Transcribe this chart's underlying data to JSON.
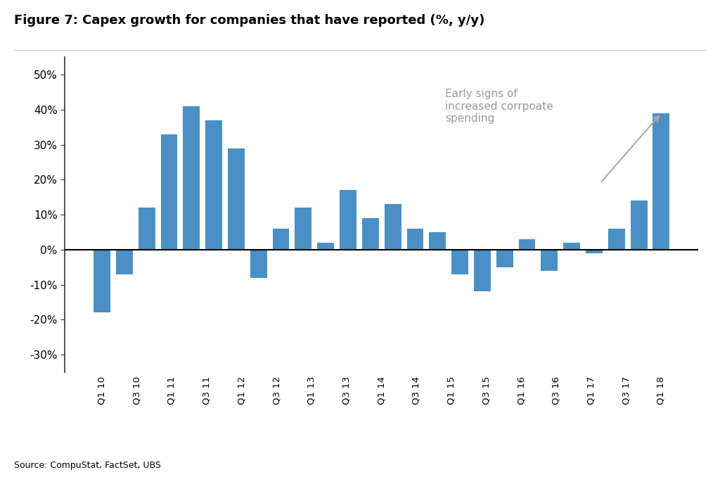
{
  "title": "Figure 7: Capex growth for companies that have reported (%, y/y)",
  "source": "Source: CompuStat, FactSet, UBS",
  "bar_color": "#4A90C4",
  "background_color": "#FFFFFF",
  "values": [
    -18,
    -7,
    12,
    33,
    41,
    37,
    29,
    -8,
    6,
    12,
    2,
    17,
    9,
    13,
    6,
    5,
    -7,
    -12,
    -5,
    3,
    -6,
    2,
    -1,
    6,
    14,
    39
  ],
  "x_labels": [
    "Q1 10",
    "Q3 10",
    "Q1 11",
    "Q3 11",
    "",
    "",
    "Q1 12",
    "Q3 12",
    "Q1 13",
    "Q3 13",
    "Q1 14",
    "Q3 14",
    "Q1 15",
    "Q3 15",
    "Q1 16",
    "Q3 16",
    "Q1 17",
    "Q3 17",
    "Q1 18"
  ],
  "tick_labels": [
    "Q1 10",
    "Q3 10",
    "Q1 11",
    "Q3 11",
    "Q1 12",
    "Q3 12",
    "Q1 13",
    "Q3 13",
    "Q1 14",
    "Q3 14",
    "Q1 15",
    "Q3 15",
    "Q1 16",
    "Q3 16",
    "Q1 17",
    "Q3 17",
    "Q1 18"
  ],
  "ylim": [
    -35,
    55
  ],
  "yticks": [
    -30,
    -20,
    -10,
    0,
    10,
    20,
    30,
    40,
    50
  ],
  "annotation_text": "Early signs of\nincreased corrpoate\nspending",
  "annotation_color": "#999999",
  "arrow_color": "#aaaaaa",
  "title_fontsize": 13,
  "source_fontsize": 9
}
